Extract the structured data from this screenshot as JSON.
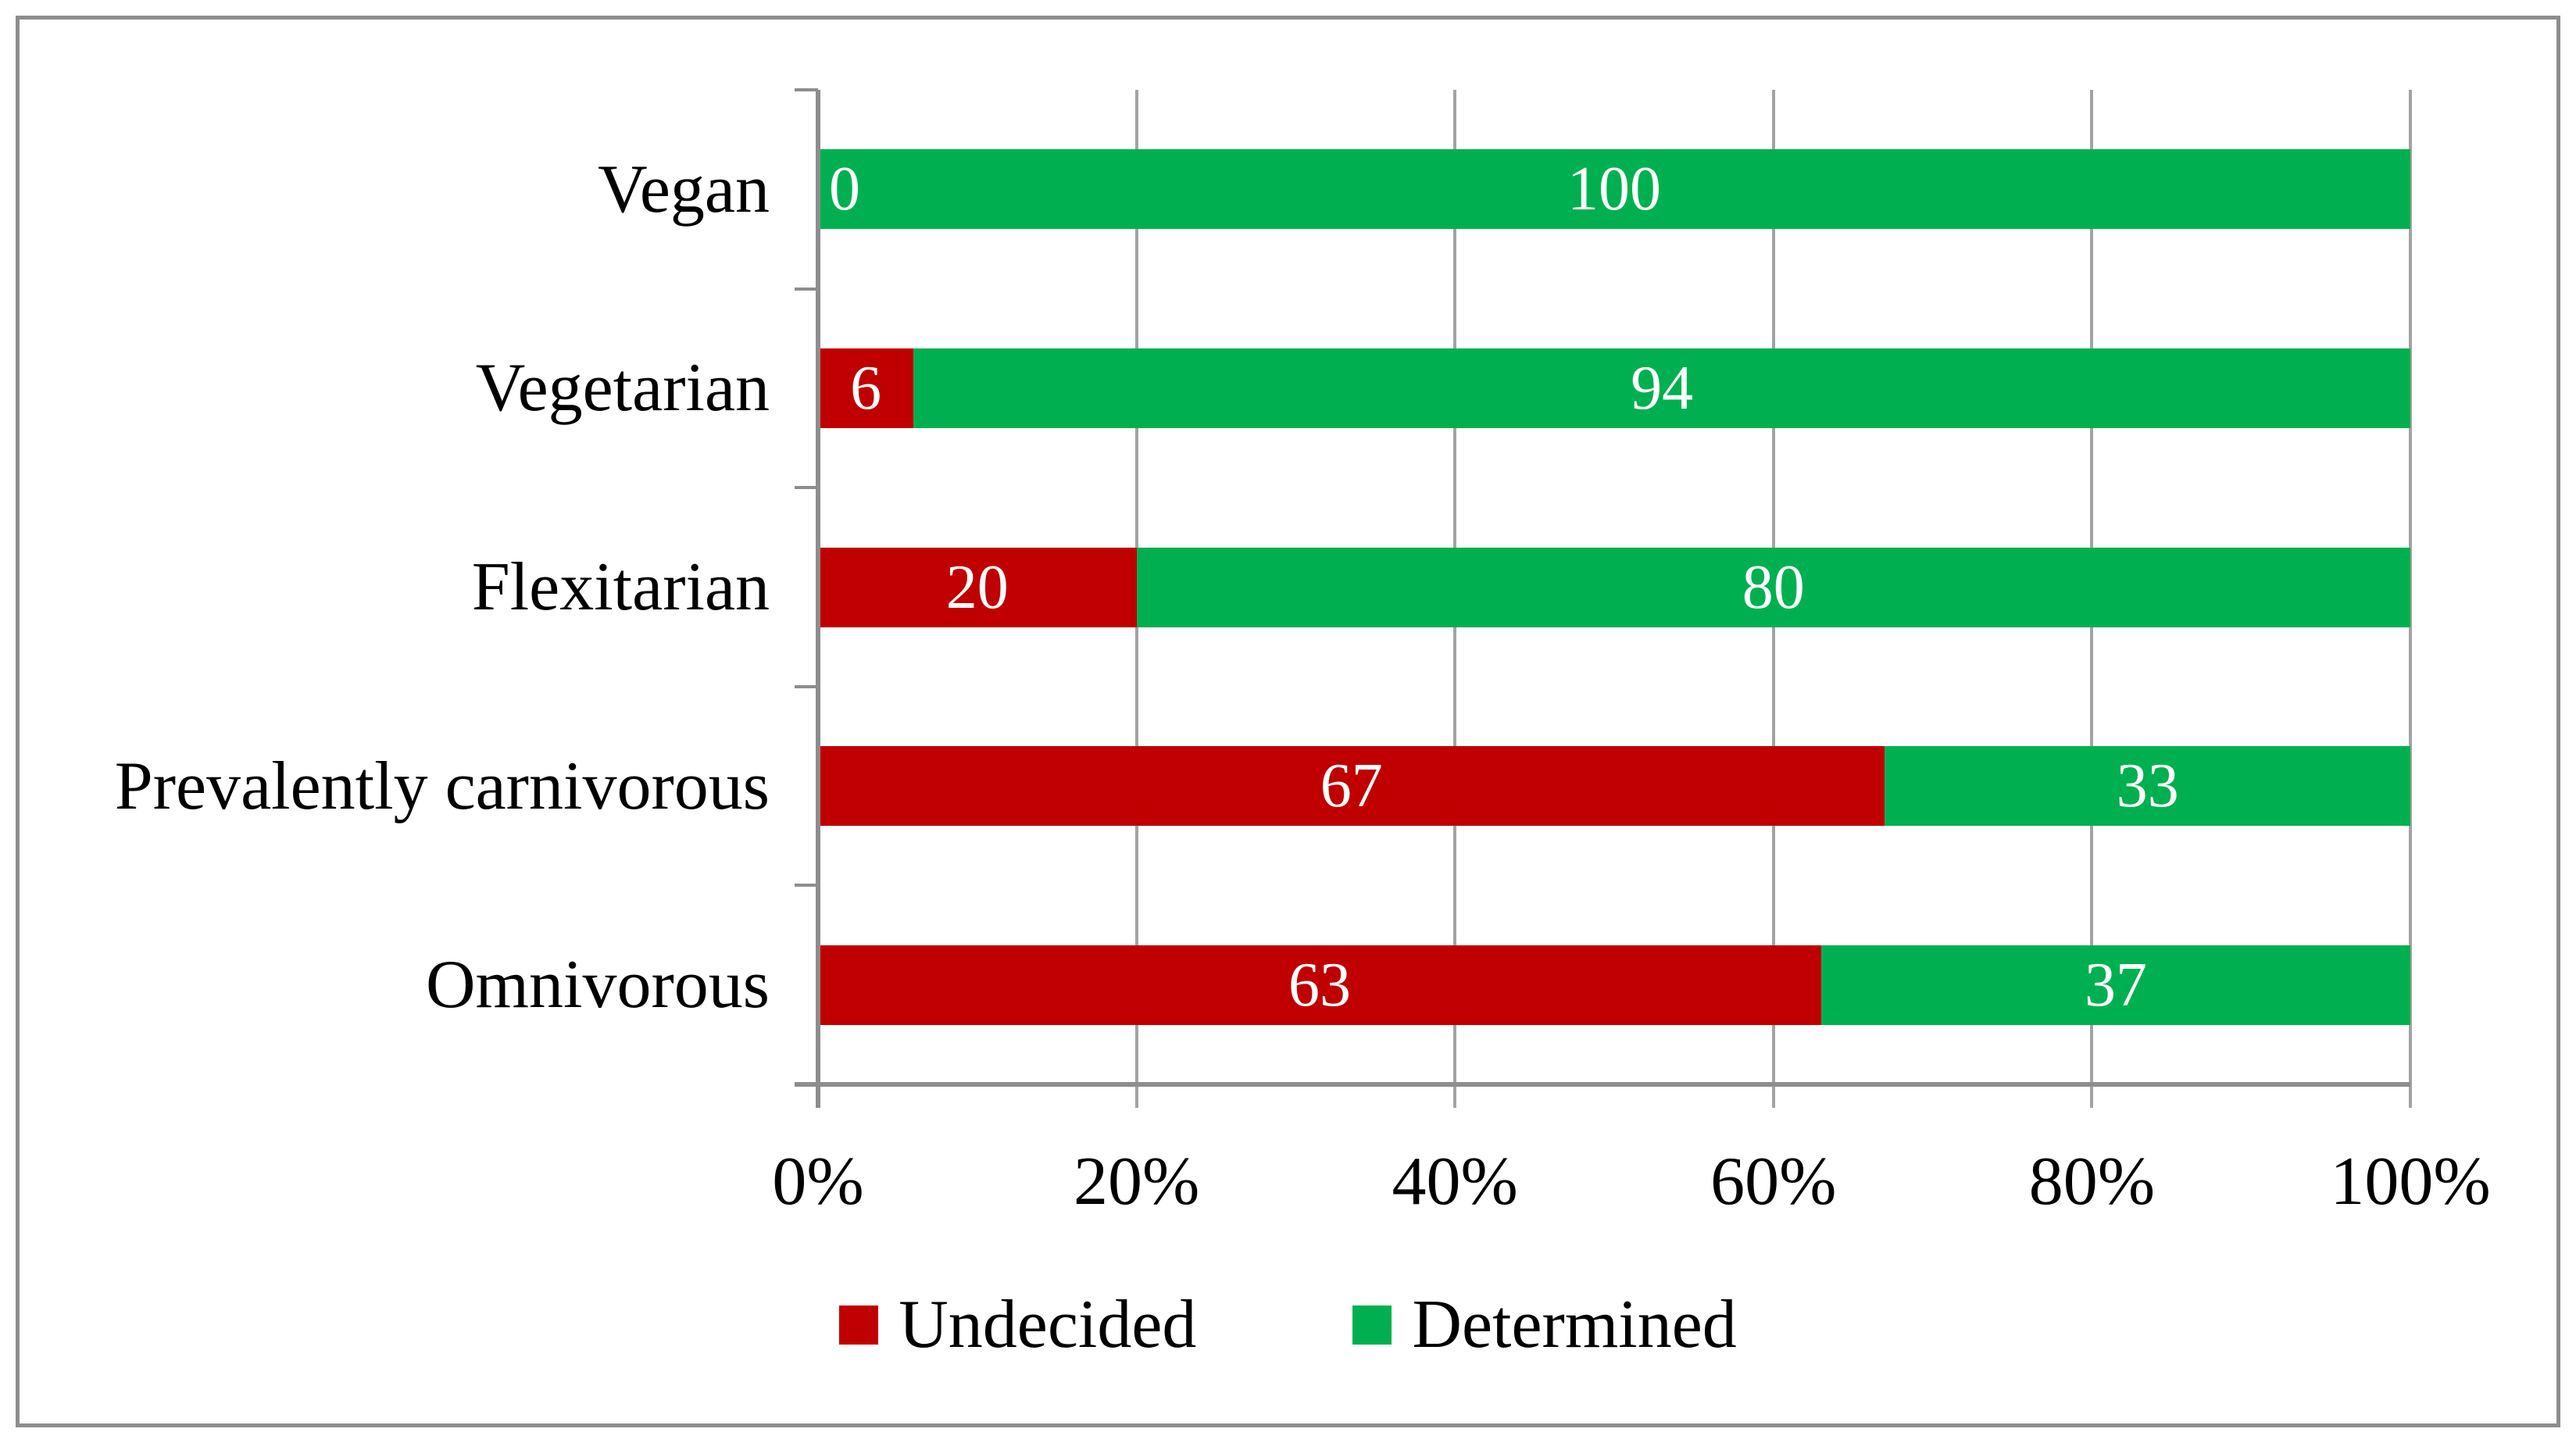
{
  "chart_data": {
    "type": "bar",
    "orientation": "horizontal",
    "stacked": true,
    "categories": [
      "Vegan",
      "Vegetarian",
      "Flexitarian",
      "Prevalently carnivorous",
      "Omnivorous"
    ],
    "series": [
      {
        "name": "Undecided",
        "color": "#C00000",
        "values": [
          0,
          6,
          20,
          67,
          63
        ]
      },
      {
        "name": "Determined",
        "color": "#00B050",
        "values": [
          100,
          94,
          80,
          33,
          37
        ]
      }
    ],
    "x_ticks": [
      "0%",
      "20%",
      "40%",
      "60%",
      "80%",
      "100%"
    ],
    "xlim": [
      0,
      100
    ],
    "grid": true,
    "gridline_color": "#A3A3A3",
    "axis_color": "#8D8D8D",
    "value_label_color": "#FFFFFF",
    "legend_position": "bottom",
    "title": "",
    "xlabel": "",
    "ylabel": ""
  },
  "legend": {
    "items": [
      {
        "label": "Undecided",
        "color": "#C00000"
      },
      {
        "label": "Determined",
        "color": "#00B050"
      }
    ]
  }
}
